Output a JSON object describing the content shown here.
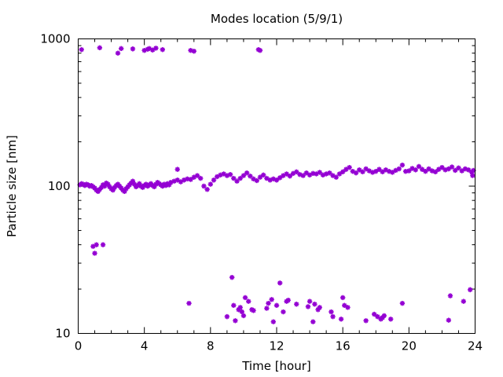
{
  "chart_data": {
    "type": "scatter",
    "title": "Modes location (5/9/1)",
    "xlabel": "Time [hour]",
    "ylabel": "Particle size [nm]",
    "xlim": [
      0,
      24
    ],
    "ylim": [
      10,
      1000
    ],
    "yscale": "log",
    "xticks": [
      0,
      4,
      8,
      12,
      16,
      20,
      24
    ],
    "xtick_labels": [
      "0",
      "4",
      "8",
      "12",
      "16",
      "20",
      "24"
    ],
    "xminor_step": 1,
    "yticks": [
      10,
      100,
      1000
    ],
    "ytick_labels": [
      "10",
      "100",
      "1000"
    ],
    "marker": "asterisk",
    "color": "#9400d3",
    "grid": false,
    "legend": "none",
    "series": [
      {
        "values": [
          [
            0.1,
            102
          ],
          [
            0.2,
            104
          ],
          [
            0.3,
            103
          ],
          [
            0.4,
            101
          ],
          [
            0.5,
            103
          ],
          [
            0.6,
            102
          ],
          [
            0.7,
            100
          ],
          [
            0.8,
            101
          ],
          [
            0.9,
            99
          ],
          [
            1.0,
            97
          ],
          [
            1.1,
            94
          ],
          [
            1.2,
            92
          ],
          [
            1.3,
            95
          ],
          [
            1.4,
            98
          ],
          [
            1.5,
            102
          ],
          [
            1.6,
            100
          ],
          [
            1.7,
            105
          ],
          [
            1.8,
            103
          ],
          [
            1.9,
            99
          ],
          [
            2.0,
            96
          ],
          [
            2.1,
            94
          ],
          [
            2.2,
            98
          ],
          [
            2.3,
            101
          ],
          [
            2.4,
            103
          ],
          [
            2.5,
            100
          ],
          [
            2.6,
            97
          ],
          [
            2.7,
            94
          ],
          [
            2.8,
            92
          ],
          [
            2.9,
            96
          ],
          [
            3.0,
            99
          ],
          [
            3.1,
            102
          ],
          [
            3.2,
            105
          ],
          [
            3.3,
            108
          ],
          [
            3.4,
            103
          ],
          [
            3.5,
            99
          ],
          [
            3.6,
            101
          ],
          [
            3.7,
            104
          ],
          [
            3.8,
            100
          ],
          [
            3.9,
            98
          ],
          [
            4.0,
            101
          ],
          [
            4.1,
            103
          ],
          [
            4.2,
            100
          ],
          [
            4.3,
            102
          ],
          [
            4.4,
            104
          ],
          [
            4.5,
            101
          ],
          [
            4.6,
            99
          ],
          [
            4.7,
            103
          ],
          [
            4.8,
            106
          ],
          [
            4.9,
            104
          ],
          [
            5.0,
            102
          ],
          [
            5.1,
            100
          ],
          [
            5.2,
            103
          ],
          [
            5.3,
            101
          ],
          [
            5.4,
            104
          ],
          [
            5.5,
            102
          ],
          [
            5.6,
            106
          ],
          [
            5.8,
            108
          ],
          [
            6.0,
            110
          ],
          [
            6.2,
            107
          ],
          [
            6.4,
            110
          ],
          [
            6.6,
            112
          ],
          [
            6.8,
            111
          ],
          [
            7.0,
            115
          ],
          [
            7.2,
            118
          ],
          [
            7.4,
            113
          ],
          [
            7.6,
            100
          ],
          [
            7.8,
            95
          ],
          [
            8.0,
            103
          ],
          [
            8.2,
            110
          ],
          [
            8.4,
            116
          ],
          [
            8.6,
            119
          ],
          [
            8.8,
            121
          ],
          [
            9.0,
            118
          ],
          [
            9.2,
            120
          ],
          [
            9.4,
            113
          ],
          [
            9.6,
            108
          ],
          [
            9.8,
            113
          ],
          [
            10.0,
            118
          ],
          [
            10.2,
            123
          ],
          [
            10.4,
            117
          ],
          [
            10.6,
            112
          ],
          [
            10.8,
            109
          ],
          [
            11.0,
            115
          ],
          [
            11.2,
            119
          ],
          [
            11.4,
            113
          ],
          [
            11.6,
            110
          ],
          [
            11.8,
            112
          ],
          [
            12.0,
            110
          ],
          [
            12.2,
            114
          ],
          [
            12.4,
            118
          ],
          [
            12.6,
            121
          ],
          [
            12.8,
            117
          ],
          [
            13.0,
            122
          ],
          [
            13.2,
            125
          ],
          [
            13.4,
            120
          ],
          [
            13.6,
            118
          ],
          [
            13.8,
            123
          ],
          [
            14.0,
            119
          ],
          [
            14.2,
            122
          ],
          [
            14.4,
            121
          ],
          [
            14.6,
            124
          ],
          [
            14.8,
            119
          ],
          [
            15.0,
            121
          ],
          [
            15.2,
            123
          ],
          [
            15.4,
            118
          ],
          [
            15.6,
            115
          ],
          [
            15.8,
            121
          ],
          [
            16.0,
            125
          ],
          [
            16.2,
            130
          ],
          [
            16.4,
            134
          ],
          [
            16.6,
            126
          ],
          [
            16.8,
            123
          ],
          [
            17.0,
            129
          ],
          [
            17.2,
            125
          ],
          [
            17.4,
            131
          ],
          [
            17.6,
            127
          ],
          [
            17.8,
            124
          ],
          [
            18.0,
            126
          ],
          [
            18.2,
            130
          ],
          [
            18.4,
            125
          ],
          [
            18.6,
            129
          ],
          [
            18.8,
            126
          ],
          [
            19.0,
            124
          ],
          [
            19.2,
            128
          ],
          [
            19.4,
            131
          ],
          [
            19.6,
            139
          ],
          [
            19.8,
            126
          ],
          [
            20.0,
            127
          ],
          [
            20.2,
            132
          ],
          [
            20.4,
            129
          ],
          [
            20.6,
            136
          ],
          [
            20.8,
            130
          ],
          [
            21.0,
            126
          ],
          [
            21.2,
            131
          ],
          [
            21.4,
            127
          ],
          [
            21.6,
            125
          ],
          [
            21.8,
            130
          ],
          [
            22.0,
            134
          ],
          [
            22.2,
            129
          ],
          [
            22.4,
            131
          ],
          [
            22.6,
            135
          ],
          [
            22.8,
            128
          ],
          [
            23.0,
            133
          ],
          [
            23.2,
            127
          ],
          [
            23.4,
            131
          ],
          [
            23.6,
            129
          ],
          [
            23.8,
            124
          ],
          [
            23.9,
            128
          ],
          [
            23.85,
            118
          ],
          [
            6.0,
            130
          ],
          [
            0.2,
            845
          ],
          [
            1.3,
            870
          ],
          [
            2.4,
            800
          ],
          [
            2.6,
            860
          ],
          [
            3.3,
            855
          ],
          [
            4.0,
            835
          ],
          [
            4.2,
            850
          ],
          [
            4.3,
            860
          ],
          [
            4.5,
            840
          ],
          [
            4.7,
            865
          ],
          [
            5.1,
            845
          ],
          [
            6.8,
            835
          ],
          [
            7.0,
            825
          ],
          [
            10.9,
            845
          ],
          [
            11.0,
            835
          ],
          [
            0.9,
            39
          ],
          [
            1.0,
            35
          ],
          [
            1.1,
            40
          ],
          [
            1.5,
            40
          ],
          [
            6.7,
            16
          ],
          [
            9.0,
            13
          ],
          [
            9.3,
            24
          ],
          [
            9.4,
            15.5
          ],
          [
            9.5,
            12.2
          ],
          [
            9.7,
            14.5
          ],
          [
            9.8,
            15
          ],
          [
            9.9,
            14
          ],
          [
            10.0,
            13.2
          ],
          [
            10.1,
            17.5
          ],
          [
            10.3,
            16.5
          ],
          [
            10.5,
            14.5
          ],
          [
            10.6,
            14.3
          ],
          [
            11.4,
            14.8
          ],
          [
            11.5,
            16
          ],
          [
            11.7,
            17
          ],
          [
            11.8,
            12
          ],
          [
            12.0,
            15.5
          ],
          [
            12.2,
            22
          ],
          [
            12.4,
            14
          ],
          [
            12.6,
            16.5
          ],
          [
            12.7,
            16.8
          ],
          [
            13.2,
            15.8
          ],
          [
            13.9,
            15.2
          ],
          [
            14.0,
            16.5
          ],
          [
            14.2,
            12
          ],
          [
            14.3,
            15.8
          ],
          [
            14.5,
            14.5
          ],
          [
            14.6,
            15
          ],
          [
            15.3,
            14
          ],
          [
            15.4,
            13
          ],
          [
            15.9,
            12.5
          ],
          [
            16.0,
            17.5
          ],
          [
            16.1,
            15.5
          ],
          [
            16.3,
            15
          ],
          [
            17.4,
            12.2
          ],
          [
            17.9,
            13.5
          ],
          [
            18.1,
            13
          ],
          [
            18.3,
            12.5
          ],
          [
            18.4,
            12.8
          ],
          [
            18.5,
            13.2
          ],
          [
            18.9,
            12.5
          ],
          [
            19.6,
            16
          ],
          [
            22.4,
            12.3
          ],
          [
            22.5,
            18
          ],
          [
            23.3,
            16.5
          ],
          [
            23.7,
            19.8
          ]
        ]
      }
    ]
  }
}
